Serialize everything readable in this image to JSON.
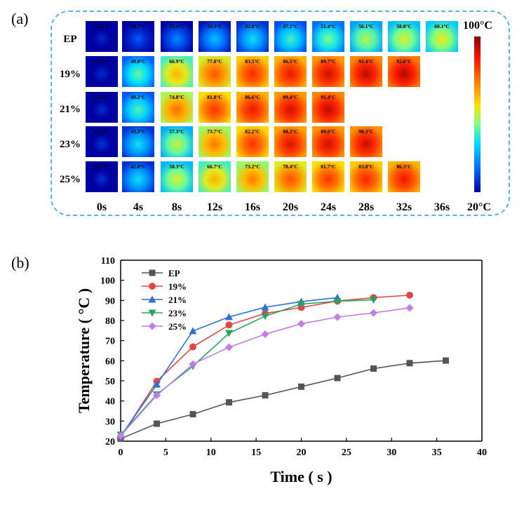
{
  "panel_a": {
    "label": "(a)",
    "rows": [
      {
        "label": "EP",
        "temps": [
          "21.2°C",
          "28.7°C",
          "33.4°C",
          "39.3°C",
          "42.8°C",
          "47.1°C",
          "51.4°C",
          "56.1°C",
          "58.8°C",
          "60.1°C"
        ]
      },
      {
        "label": "19%",
        "temps": [
          "21.9°C",
          "49.8°C",
          "66.9°C",
          "77.8°C",
          "83.5°C",
          "86.5°C",
          "89.7°C",
          "91.4°C",
          "92.6°C"
        ]
      },
      {
        "label": "21%",
        "temps": [
          "22.4°C",
          "48.2°C",
          "74.8°C",
          "81.8°C",
          "86.6°C",
          "89.4°C",
          "91.4°C"
        ]
      },
      {
        "label": "23%",
        "temps": [
          "23.2°C",
          "43.2°C",
          "57.3°C",
          "73.7°C",
          "82.2°C",
          "88.2°C",
          "89.6°C",
          "90.3°C"
        ]
      },
      {
        "label": "25%",
        "temps": [
          "22.7°C",
          "42.8°C",
          "58.3°C",
          "66.7°C",
          "73.2°C",
          "78.4°C",
          "81.7°C",
          "83.8°C",
          "86.3°C"
        ]
      }
    ],
    "times": [
      "0s",
      "4s",
      "8s",
      "12s",
      "16s",
      "20s",
      "24s",
      "28s",
      "32s",
      "36s"
    ],
    "colorbar": {
      "max_label": "100°C",
      "min_label": "20°C"
    }
  },
  "panel_b": {
    "label": "(b)"
  },
  "chart_data": {
    "type": "line",
    "xlabel": "Time ( s )",
    "ylabel": "Temperature ( °C )",
    "xlim": [
      0,
      40
    ],
    "ylim": [
      20,
      110
    ],
    "xticks": [
      0,
      5,
      10,
      15,
      20,
      25,
      30,
      35,
      40
    ],
    "yticks": [
      20,
      30,
      40,
      50,
      60,
      70,
      80,
      90,
      100,
      110
    ],
    "grid": false,
    "legend_position": "top-left",
    "series": [
      {
        "name": "EP",
        "color": "#555555",
        "marker": "square",
        "x": [
          0,
          4,
          8,
          12,
          16,
          20,
          24,
          28,
          32,
          36
        ],
        "y": [
          21.2,
          28.7,
          33.4,
          39.3,
          42.8,
          47.1,
          51.4,
          56.1,
          58.8,
          60.1
        ]
      },
      {
        "name": "19%",
        "color": "#e04848",
        "marker": "circle",
        "x": [
          0,
          4,
          8,
          12,
          16,
          20,
          24,
          28,
          32
        ],
        "y": [
          21.9,
          49.8,
          66.9,
          77.8,
          83.5,
          86.5,
          89.7,
          91.4,
          92.6
        ]
      },
      {
        "name": "21%",
        "color": "#2f6fd6",
        "marker": "triangle-up",
        "x": [
          0,
          4,
          8,
          12,
          16,
          20,
          24
        ],
        "y": [
          22.4,
          48.2,
          74.8,
          81.8,
          86.6,
          89.4,
          91.4
        ]
      },
      {
        "name": "23%",
        "color": "#27a361",
        "marker": "triangle-down",
        "x": [
          0,
          4,
          8,
          12,
          16,
          20,
          24,
          28
        ],
        "y": [
          23.2,
          43.2,
          57.3,
          73.7,
          82.2,
          88.2,
          89.6,
          90.3
        ]
      },
      {
        "name": "25%",
        "color": "#c27ee8",
        "marker": "diamond",
        "x": [
          0,
          4,
          8,
          12,
          16,
          20,
          24,
          28,
          32
        ],
        "y": [
          22.7,
          42.8,
          58.3,
          66.7,
          73.2,
          78.4,
          81.7,
          83.8,
          86.3
        ]
      }
    ]
  }
}
